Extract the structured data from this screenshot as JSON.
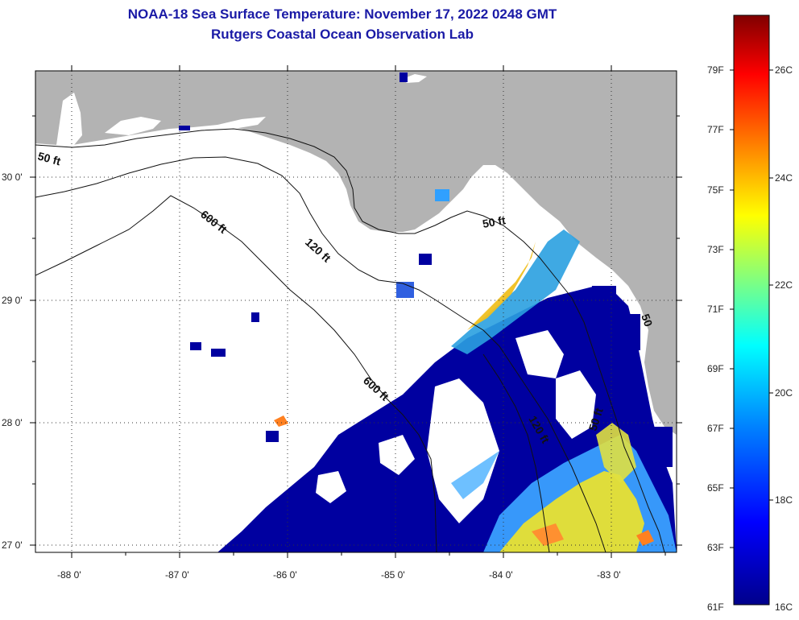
{
  "title": {
    "line1": "NOAA-18 Sea Surface Temperature:  November 17, 2022 0248 GMT",
    "line2": "Rutgers Coastal Ocean Observation Lab"
  },
  "map": {
    "lat_labels": [
      "30 0'",
      "29 0'",
      "28 0'",
      "27 0'"
    ],
    "lon_labels": [
      "-88 0'",
      "-87 0'",
      "-86 0'",
      "-85 0'",
      "-84 0'",
      "-83 0'"
    ],
    "contour_labels": [
      "50 ft",
      "600 ft",
      "120 ft",
      "50 ft",
      "600 ft",
      "120 ft",
      "50 ft",
      "50"
    ],
    "land_color": "#b3b3b3",
    "cloud_color": "#ffffff"
  },
  "colorbar": {
    "fahrenheit_labels": [
      "79F",
      "77F",
      "75F",
      "73F",
      "71F",
      "69F",
      "67F",
      "65F",
      "63F",
      "61F"
    ],
    "celsius_labels": [
      "26C",
      "24C",
      "22C",
      "20C",
      "18C",
      "16C"
    ],
    "colors": [
      "#00008b",
      "#0000ff",
      "#0080ff",
      "#00ffff",
      "#80ff80",
      "#ffff00",
      "#ff8000",
      "#ff0000",
      "#800000"
    ]
  }
}
